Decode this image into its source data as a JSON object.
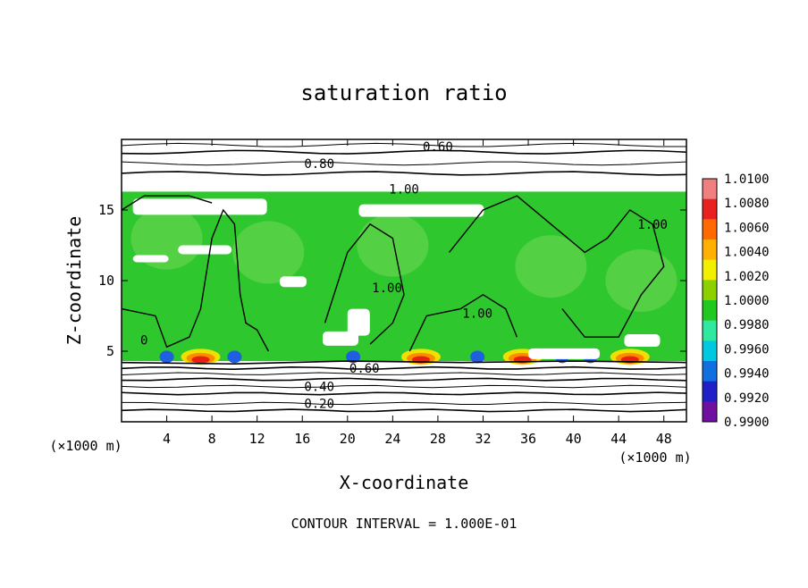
{
  "chart_data": {
    "type": "heatmap",
    "title": "saturation ratio",
    "xlabel": "X-coordinate",
    "ylabel": "Z-coordinate",
    "x_unit": "(×1000 m)",
    "x_unit_right": "(×1000 m)",
    "xlim": [
      0,
      50
    ],
    "ylim": [
      0,
      20
    ],
    "x_ticks": [
      4,
      8,
      12,
      16,
      20,
      24,
      28,
      32,
      36,
      40,
      44,
      48
    ],
    "x_tick_labels": [
      "4",
      "8",
      "12",
      "16",
      "20",
      "24",
      "28",
      "32",
      "36",
      "40",
      "44",
      "48"
    ],
    "y_ticks": [
      5,
      10,
      15
    ],
    "y_tick_labels": [
      "5",
      "10",
      "15"
    ],
    "footer": "CONTOUR INTERVAL = 1.000E-01",
    "contour_labels": [
      {
        "text": "0.60",
        "x": 28,
        "y": 19.5
      },
      {
        "text": "0.80",
        "x": 17.5,
        "y": 18.3
      },
      {
        "text": "1.00",
        "x": 25,
        "y": 16.5
      },
      {
        "text": "1.00",
        "x": 47,
        "y": 14.0
      },
      {
        "text": "1.00",
        "x": 23.5,
        "y": 9.5
      },
      {
        "text": "1.00",
        "x": 31.5,
        "y": 7.7
      },
      {
        "text": "0.60",
        "x": 21.5,
        "y": 3.8
      },
      {
        "text": "0.40",
        "x": 17.5,
        "y": 2.5
      },
      {
        "text": "0.20",
        "x": 17.5,
        "y": 1.3
      },
      {
        "text": "0",
        "x": 2,
        "y": 5.8
      }
    ],
    "colorbar": {
      "labels": [
        "1.0100",
        "1.0080",
        "1.0060",
        "1.0040",
        "1.0020",
        "1.0000",
        "0.9980",
        "0.9960",
        "0.9940",
        "0.9920",
        "0.9900"
      ],
      "colors": [
        "#f08080",
        "#e82020",
        "#ff6a00",
        "#ffb000",
        "#f0f000",
        "#8cd000",
        "#20c820",
        "#30e8a0",
        "#00c8e0",
        "#1070e0",
        "#2020c8",
        "#7010a0"
      ]
    },
    "field_colors": {
      "green": "#2ec82e",
      "light_green": "#7ad85a",
      "red": "#e82010",
      "orange": "#ff8c00",
      "yellow": "#f0e000",
      "blue": "#2060e0",
      "cyan": "#40d8e8",
      "white": "#ffffff"
    }
  }
}
